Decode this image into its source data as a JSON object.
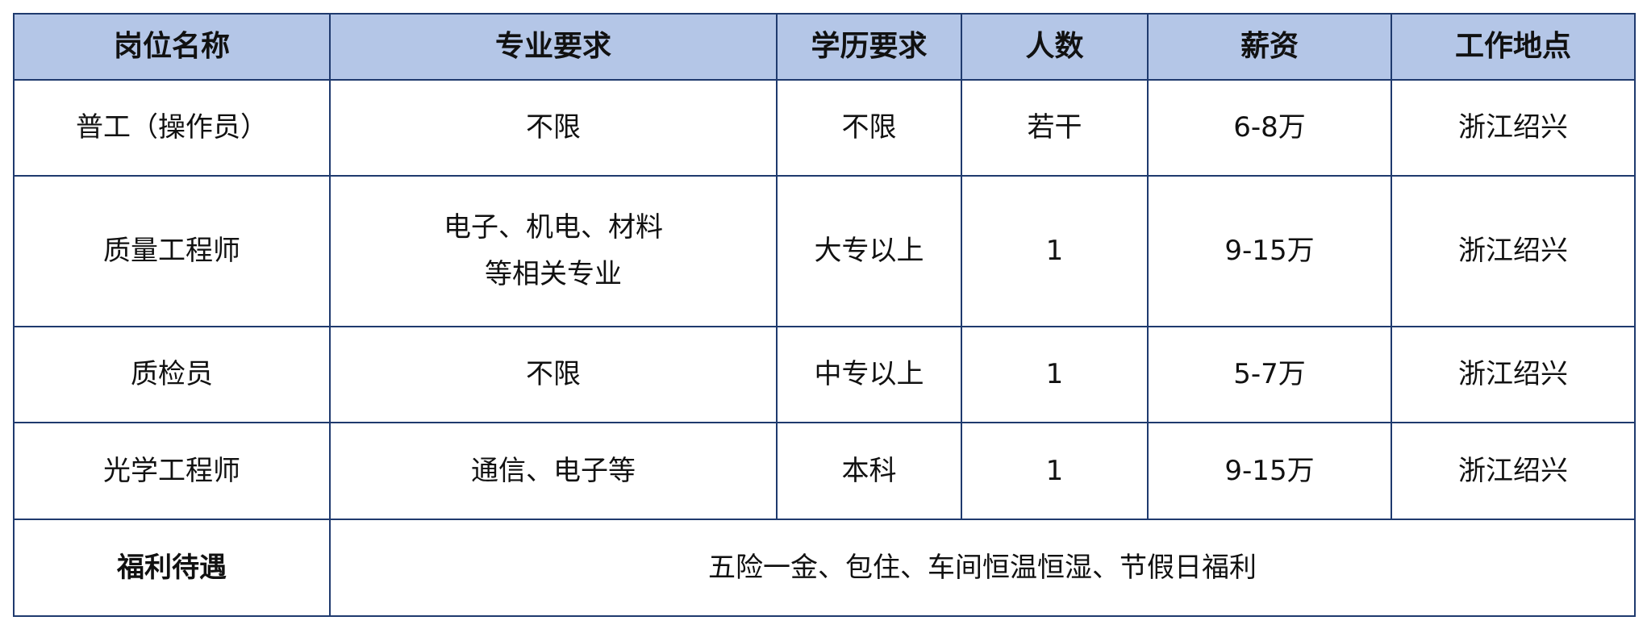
{
  "headers": [
    "岗位名称",
    "专业要求",
    "学历要求",
    "人数",
    "薪资",
    "工作地点"
  ],
  "rows": [
    {
      "position": "普工（操作员）",
      "major": [
        "不限"
      ],
      "education": "不限",
      "count": "若干",
      "salary": "6-8万",
      "location": "浙江绍兴"
    },
    {
      "position": "质量工程师",
      "major": [
        "电子、机电、材料",
        "等相关专业"
      ],
      "education": "大专以上",
      "count": "1",
      "salary": "9-15万",
      "location": "浙江绍兴"
    },
    {
      "position": "质检员",
      "major": [
        "不限"
      ],
      "education": "中专以上",
      "count": "1",
      "salary": "5-7万",
      "location": "浙江绍兴"
    },
    {
      "position": "光学工程师",
      "major": [
        "通信、电子等"
      ],
      "education": "本科",
      "count": "1",
      "salary": "9-15万",
      "location": "浙江绍兴"
    }
  ],
  "benefits": {
    "label": "福利待遇",
    "value": "五险一金、包住、车间恒温恒湿、节假日福利"
  },
  "colors": {
    "header_bg": "#b4c6e7",
    "border": "#1f3a6e"
  }
}
